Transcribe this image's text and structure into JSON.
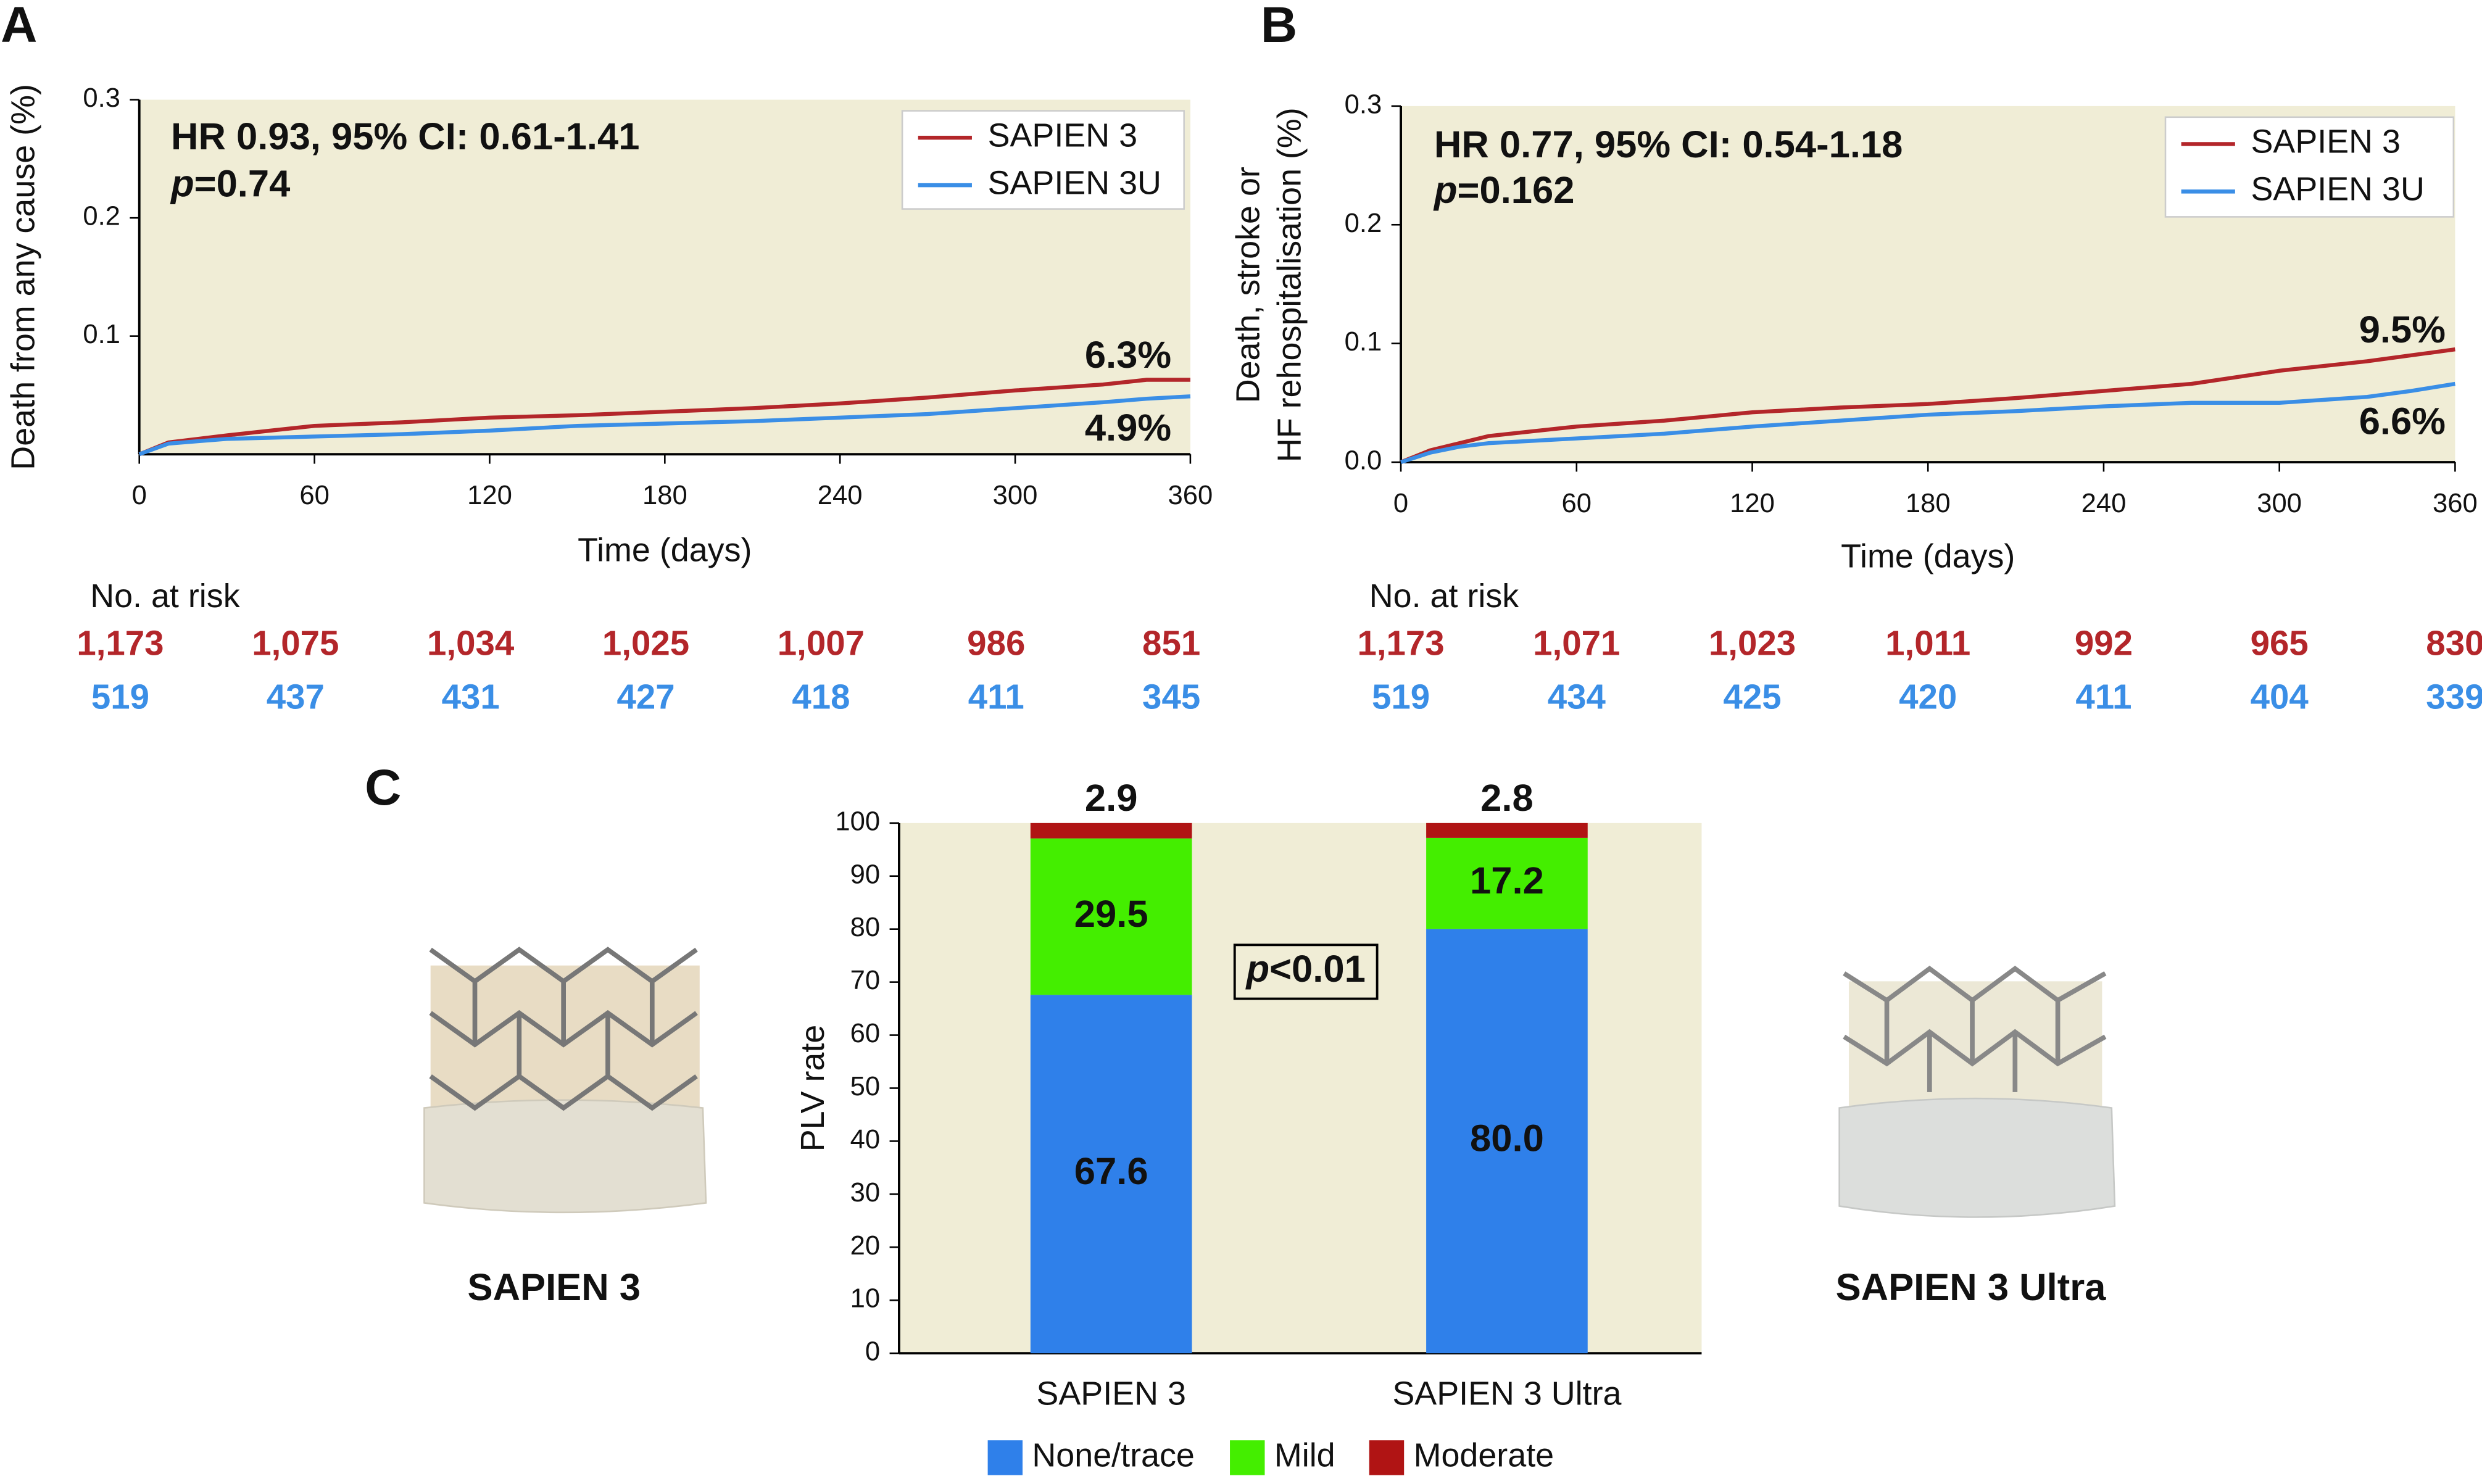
{
  "chart_data": [
    {
      "type": "line",
      "panel": "A",
      "xlabel": "Time (days)",
      "ylabel": [
        "Death from any cause (%)"
      ],
      "xlim": [
        0,
        360
      ],
      "xticks": [
        0,
        60,
        120,
        180,
        240,
        300,
        360
      ],
      "ylim": [
        0,
        0.3
      ],
      "yticks": [
        0.1,
        0.2,
        0.3
      ],
      "background": "#f0edd6",
      "legend": "upper right",
      "stats": "HR 0.93, 95% CI: 0.61-1.41",
      "p_symbol": "p",
      "p_text": "=0.74",
      "x": [
        0,
        10,
        20,
        30,
        45,
        60,
        90,
        120,
        150,
        180,
        210,
        240,
        270,
        300,
        330,
        345,
        360
      ],
      "series": [
        {
          "name": "SAPIEN 3",
          "color": "#b3262a",
          "end_label": "6.3%",
          "values": [
            0,
            0.01,
            0.013,
            0.016,
            0.02,
            0.024,
            0.027,
            0.031,
            0.033,
            0.036,
            0.039,
            0.043,
            0.048,
            0.054,
            0.059,
            0.063,
            0.063
          ]
        },
        {
          "name": "SAPIEN 3U",
          "color": "#3a8ee6",
          "end_label": "4.9%",
          "values": [
            0,
            0.009,
            0.011,
            0.013,
            0.014,
            0.015,
            0.017,
            0.02,
            0.024,
            0.026,
            0.028,
            0.031,
            0.034,
            0.039,
            0.044,
            0.047,
            0.049
          ]
        }
      ],
      "risk_table": {
        "title": "No. at risk",
        "rows": [
          {
            "color": "#b3262a",
            "values": [
              "1,173",
              "1,075",
              "1,034",
              "1,025",
              "1,007",
              "986",
              "851"
            ]
          },
          {
            "color": "#3a8ee6",
            "values": [
              "519",
              "437",
              "431",
              "427",
              "418",
              "411",
              "345"
            ]
          }
        ]
      }
    },
    {
      "type": "line",
      "panel": "B",
      "xlabel": "Time (days)",
      "ylabel": [
        "Death, stroke or",
        "HF rehospitalisation (%)"
      ],
      "xlim": [
        0,
        360
      ],
      "xticks": [
        0,
        60,
        120,
        180,
        240,
        300,
        360
      ],
      "ylim": [
        0,
        0.3
      ],
      "yticks": [
        {
          "value": 0,
          "label": "0.0"
        },
        0.1,
        0.2,
        0.3
      ],
      "background": "#f0edd6",
      "legend": "upper right",
      "stats": "HR 0.77, 95% CI: 0.54-1.18",
      "p_symbol": "p",
      "p_text": "=0.162",
      "x": [
        0,
        10,
        20,
        30,
        45,
        60,
        90,
        120,
        150,
        180,
        210,
        240,
        270,
        300,
        330,
        345,
        360
      ],
      "series": [
        {
          "name": "SAPIEN 3",
          "color": "#b3262a",
          "end_label": "9.5%",
          "values": [
            0,
            0.01,
            0.016,
            0.022,
            0.026,
            0.03,
            0.035,
            0.042,
            0.046,
            0.049,
            0.054,
            0.06,
            0.066,
            0.077,
            0.085,
            0.09,
            0.095
          ]
        },
        {
          "name": "SAPIEN 3U",
          "color": "#3a8ee6",
          "end_label": "6.6%",
          "values": [
            0,
            0.008,
            0.013,
            0.016,
            0.018,
            0.02,
            0.024,
            0.03,
            0.035,
            0.04,
            0.043,
            0.047,
            0.05,
            0.05,
            0.055,
            0.06,
            0.066
          ]
        }
      ],
      "risk_table": {
        "title": "No. at risk",
        "rows": [
          {
            "color": "#b3262a",
            "values": [
              "1,173",
              "1,071",
              "1,023",
              "1,011",
              "992",
              "965",
              "830"
            ]
          },
          {
            "color": "#3a8ee6",
            "values": [
              "519",
              "434",
              "425",
              "420",
              "411",
              "404",
              "339"
            ]
          }
        ]
      }
    },
    {
      "type": "stacked_bar",
      "panel": "C",
      "ylabel": "PLV rate",
      "ylim": [
        0,
        100
      ],
      "yticks": [
        0,
        10,
        20,
        30,
        40,
        50,
        60,
        70,
        80,
        90,
        100
      ],
      "background": "#f0edd6",
      "legend": "bottom",
      "categories": [
        "SAPIEN 3",
        "SAPIEN 3 Ultra"
      ],
      "series": [
        {
          "name": "None/trace",
          "color": "#2f80ea",
          "values": [
            67.6,
            80.0
          ],
          "value_labels": [
            "67.6",
            "80.0"
          ]
        },
        {
          "name": "Mild",
          "color": "#44ee00",
          "values": [
            29.5,
            17.2
          ]
        },
        {
          "name": "Moderate",
          "color": "#b01414",
          "values": [
            2.9,
            2.8
          ]
        }
      ],
      "p_symbol": "p",
      "p_text": "<0.01",
      "image_captions": [
        "SAPIEN 3",
        "SAPIEN 3 Ultra"
      ]
    }
  ]
}
